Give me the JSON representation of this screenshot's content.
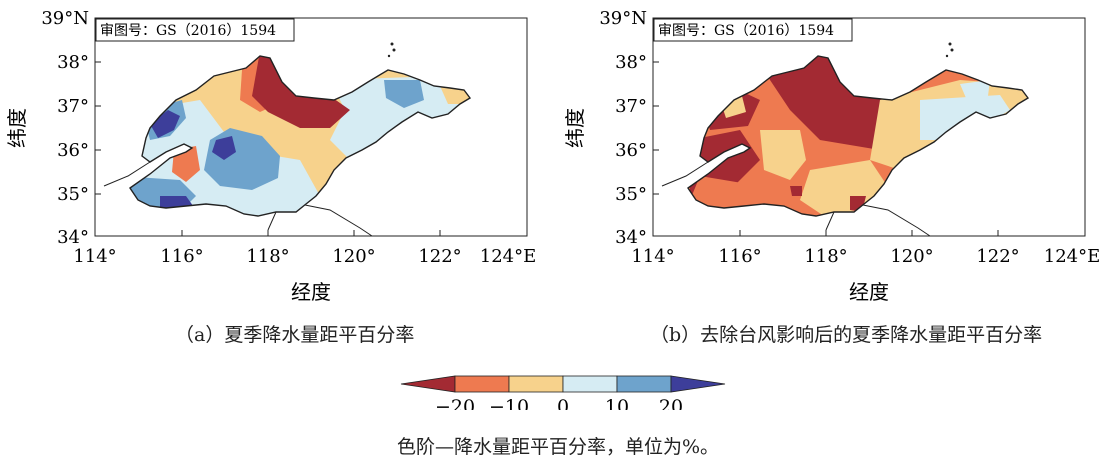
{
  "approval_number": "审图号：GS（2016）1594",
  "axes": {
    "lat_label": "纬度",
    "lon_label": "经度",
    "lat_ticks": [
      "39°N",
      "38°",
      "37°",
      "36°",
      "35°",
      "34°"
    ],
    "lon_ticks": [
      "114°",
      "116°",
      "118°",
      "120°",
      "122°",
      "124°E"
    ]
  },
  "panels": [
    {
      "id": "a",
      "caption": "（a）夏季降水量距平百分率"
    },
    {
      "id": "b",
      "caption": "（b）去除台风影响后的夏季降水量距平百分率"
    }
  ],
  "colorbar": {
    "ticks": [
      "−20",
      "−10",
      "0",
      "10",
      "20"
    ],
    "colors": [
      "#a32a33",
      "#ee7a50",
      "#f7d28c",
      "#d6ecf3",
      "#6ea3cc",
      "#3d3e9a"
    ],
    "caption": "色阶—降水量距平百分率，单位为%。"
  },
  "map_extent": {
    "lon": [
      114,
      124
    ],
    "lat": [
      34,
      39
    ]
  }
}
